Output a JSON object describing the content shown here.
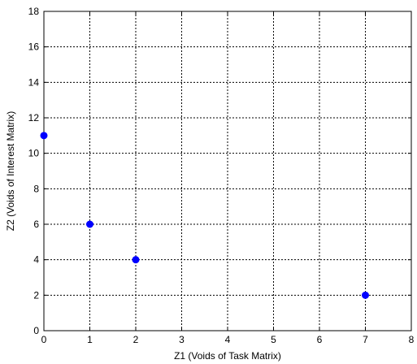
{
  "chart_data": {
    "type": "scatter",
    "xlabel": "Z1 (Voids of Task Matrix)",
    "ylabel": "Z2 (Voids of Interest Matrix)",
    "xlim": [
      0,
      8
    ],
    "ylim": [
      0,
      18
    ],
    "x_ticks": [
      0,
      1,
      2,
      3,
      4,
      5,
      6,
      7,
      8
    ],
    "y_ticks": [
      0,
      2,
      4,
      6,
      8,
      10,
      12,
      14,
      16,
      18
    ],
    "grid": true,
    "series": [
      {
        "color": "#0000ff",
        "points": [
          {
            "x": 0,
            "y": 11
          },
          {
            "x": 1,
            "y": 6
          },
          {
            "x": 2,
            "y": 4
          },
          {
            "x": 7,
            "y": 2
          }
        ]
      }
    ]
  }
}
